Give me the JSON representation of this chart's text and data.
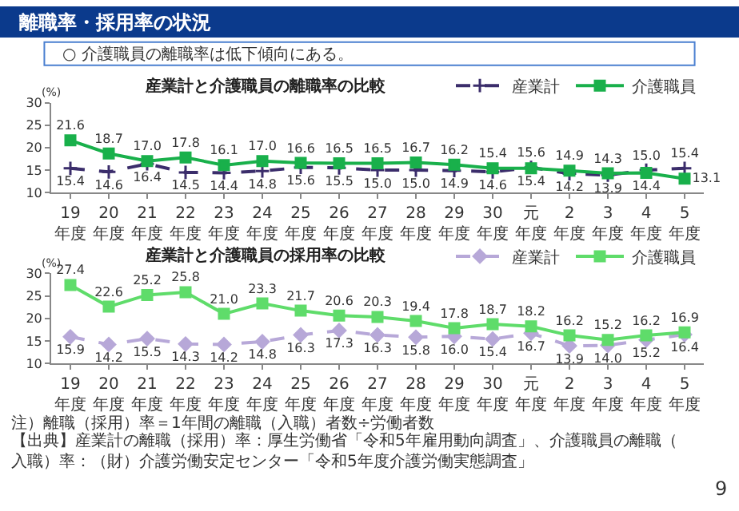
{
  "chart_data": [
    {
      "type": "other",
      "title": "離職率・採用率の状況",
      "annotations": [
        "○ 介護職員の離職率は低下傾向にある。"
      ]
    },
    {
      "type": "line",
      "title": "産業計と介護職員の離職率の比較",
      "ylabel": "(%)",
      "categories": [
        "19年度",
        "20年度",
        "21年度",
        "22年度",
        "23年度",
        "24年度",
        "25年度",
        "26年度",
        "27年度",
        "28年度",
        "29年度",
        "30年度",
        "元年度",
        "2年度",
        "3年度",
        "4年度",
        "5年度"
      ],
      "series": [
        {
          "name": "産業計",
          "color": "#3b2d6b",
          "line_style": "dashed",
          "marker": "cross",
          "values": [
            15.4,
            14.6,
            16.4,
            14.5,
            14.4,
            14.8,
            15.6,
            15.5,
            15.0,
            15.0,
            14.9,
            14.6,
            15.6,
            14.2,
            13.9,
            15.0,
            15.4
          ],
          "value_labels": [
            "15.4",
            "14.6",
            "16.4",
            "14.5",
            "14.4",
            "14.8",
            "15.6",
            "15.5",
            "15.0",
            "15.0",
            "14.9",
            "14.6",
            "15.6",
            "14.2",
            "13.9",
            "15.0",
            "15.4"
          ]
        },
        {
          "name": "介護職員",
          "color": "#19b04b",
          "line_style": "solid",
          "marker": "square",
          "values": [
            21.6,
            18.7,
            17.0,
            17.8,
            16.1,
            17.0,
            16.6,
            16.5,
            16.5,
            16.7,
            16.2,
            15.4,
            15.4,
            14.9,
            14.3,
            14.4,
            13.1
          ],
          "value_labels": [
            "21.6",
            "18.7",
            "17.0",
            "17.8",
            "16.1",
            "17.0",
            "16.6",
            "16.5",
            "16.5",
            "16.7",
            "16.2",
            "15.4",
            "15.4",
            "14.9",
            "14.3",
            "14.4",
            "13.1"
          ]
        }
      ],
      "ylim": [
        10,
        30
      ],
      "yticks": [
        10,
        15,
        20,
        25,
        30
      ],
      "grid": false,
      "legend": "top right"
    },
    {
      "type": "line",
      "title": "産業計と介護職員の採用率の比較",
      "ylabel": "(%)",
      "categories": [
        "19年度",
        "20年度",
        "21年度",
        "22年度",
        "23年度",
        "24年度",
        "25年度",
        "26年度",
        "27年度",
        "28年度",
        "29年度",
        "30年度",
        "元年度",
        "2年度",
        "3年度",
        "4年度",
        "5年度"
      ],
      "series": [
        {
          "name": "産業計",
          "color": "#b7a8d8",
          "line_style": "dashed",
          "marker": "diamond",
          "values": [
            15.9,
            14.2,
            15.5,
            14.3,
            14.2,
            14.8,
            16.3,
            17.3,
            16.3,
            15.8,
            16.0,
            15.4,
            16.7,
            13.9,
            14.0,
            15.2,
            16.4
          ],
          "value_labels": [
            "15.9",
            "14.2",
            "15.5",
            "14.3",
            "14.2",
            "14.8",
            "16.3",
            "17.3",
            "16.3",
            "15.8",
            "16.0",
            "15.4",
            "16.7",
            "13.9",
            "14.0",
            "15.2",
            "16.4"
          ]
        },
        {
          "name": "介護職員",
          "color": "#5fdc6a",
          "line_style": "solid",
          "marker": "square",
          "values": [
            27.4,
            22.6,
            25.2,
            25.8,
            21.0,
            23.3,
            21.7,
            20.6,
            20.3,
            19.4,
            17.8,
            18.7,
            18.2,
            16.2,
            15.2,
            16.2,
            16.9
          ],
          "value_labels": [
            "27.4",
            "22.6",
            "25.2",
            "25.8",
            "21.0",
            "23.3",
            "21.7",
            "20.6",
            "20.3",
            "19.4",
            "17.8",
            "18.7",
            "18.2",
            "16.2",
            "15.2",
            "16.2",
            "16.9"
          ]
        }
      ],
      "ylim": [
        10,
        30
      ],
      "yticks": [
        10,
        15,
        20,
        25,
        30
      ],
      "grid": false,
      "legend": "top right",
      "annotations": [
        "注）離職（採用）率＝1年間の離職（入職）者数÷労働者数",
        "【出典】産業計の離職（採用）率：厚生労働省「令和5年雇用動向調査」、介護職員の離職（入職）率：（財）介護労働安定センター「令和5年度介護労働実態調査」",
        "9"
      ]
    }
  ]
}
